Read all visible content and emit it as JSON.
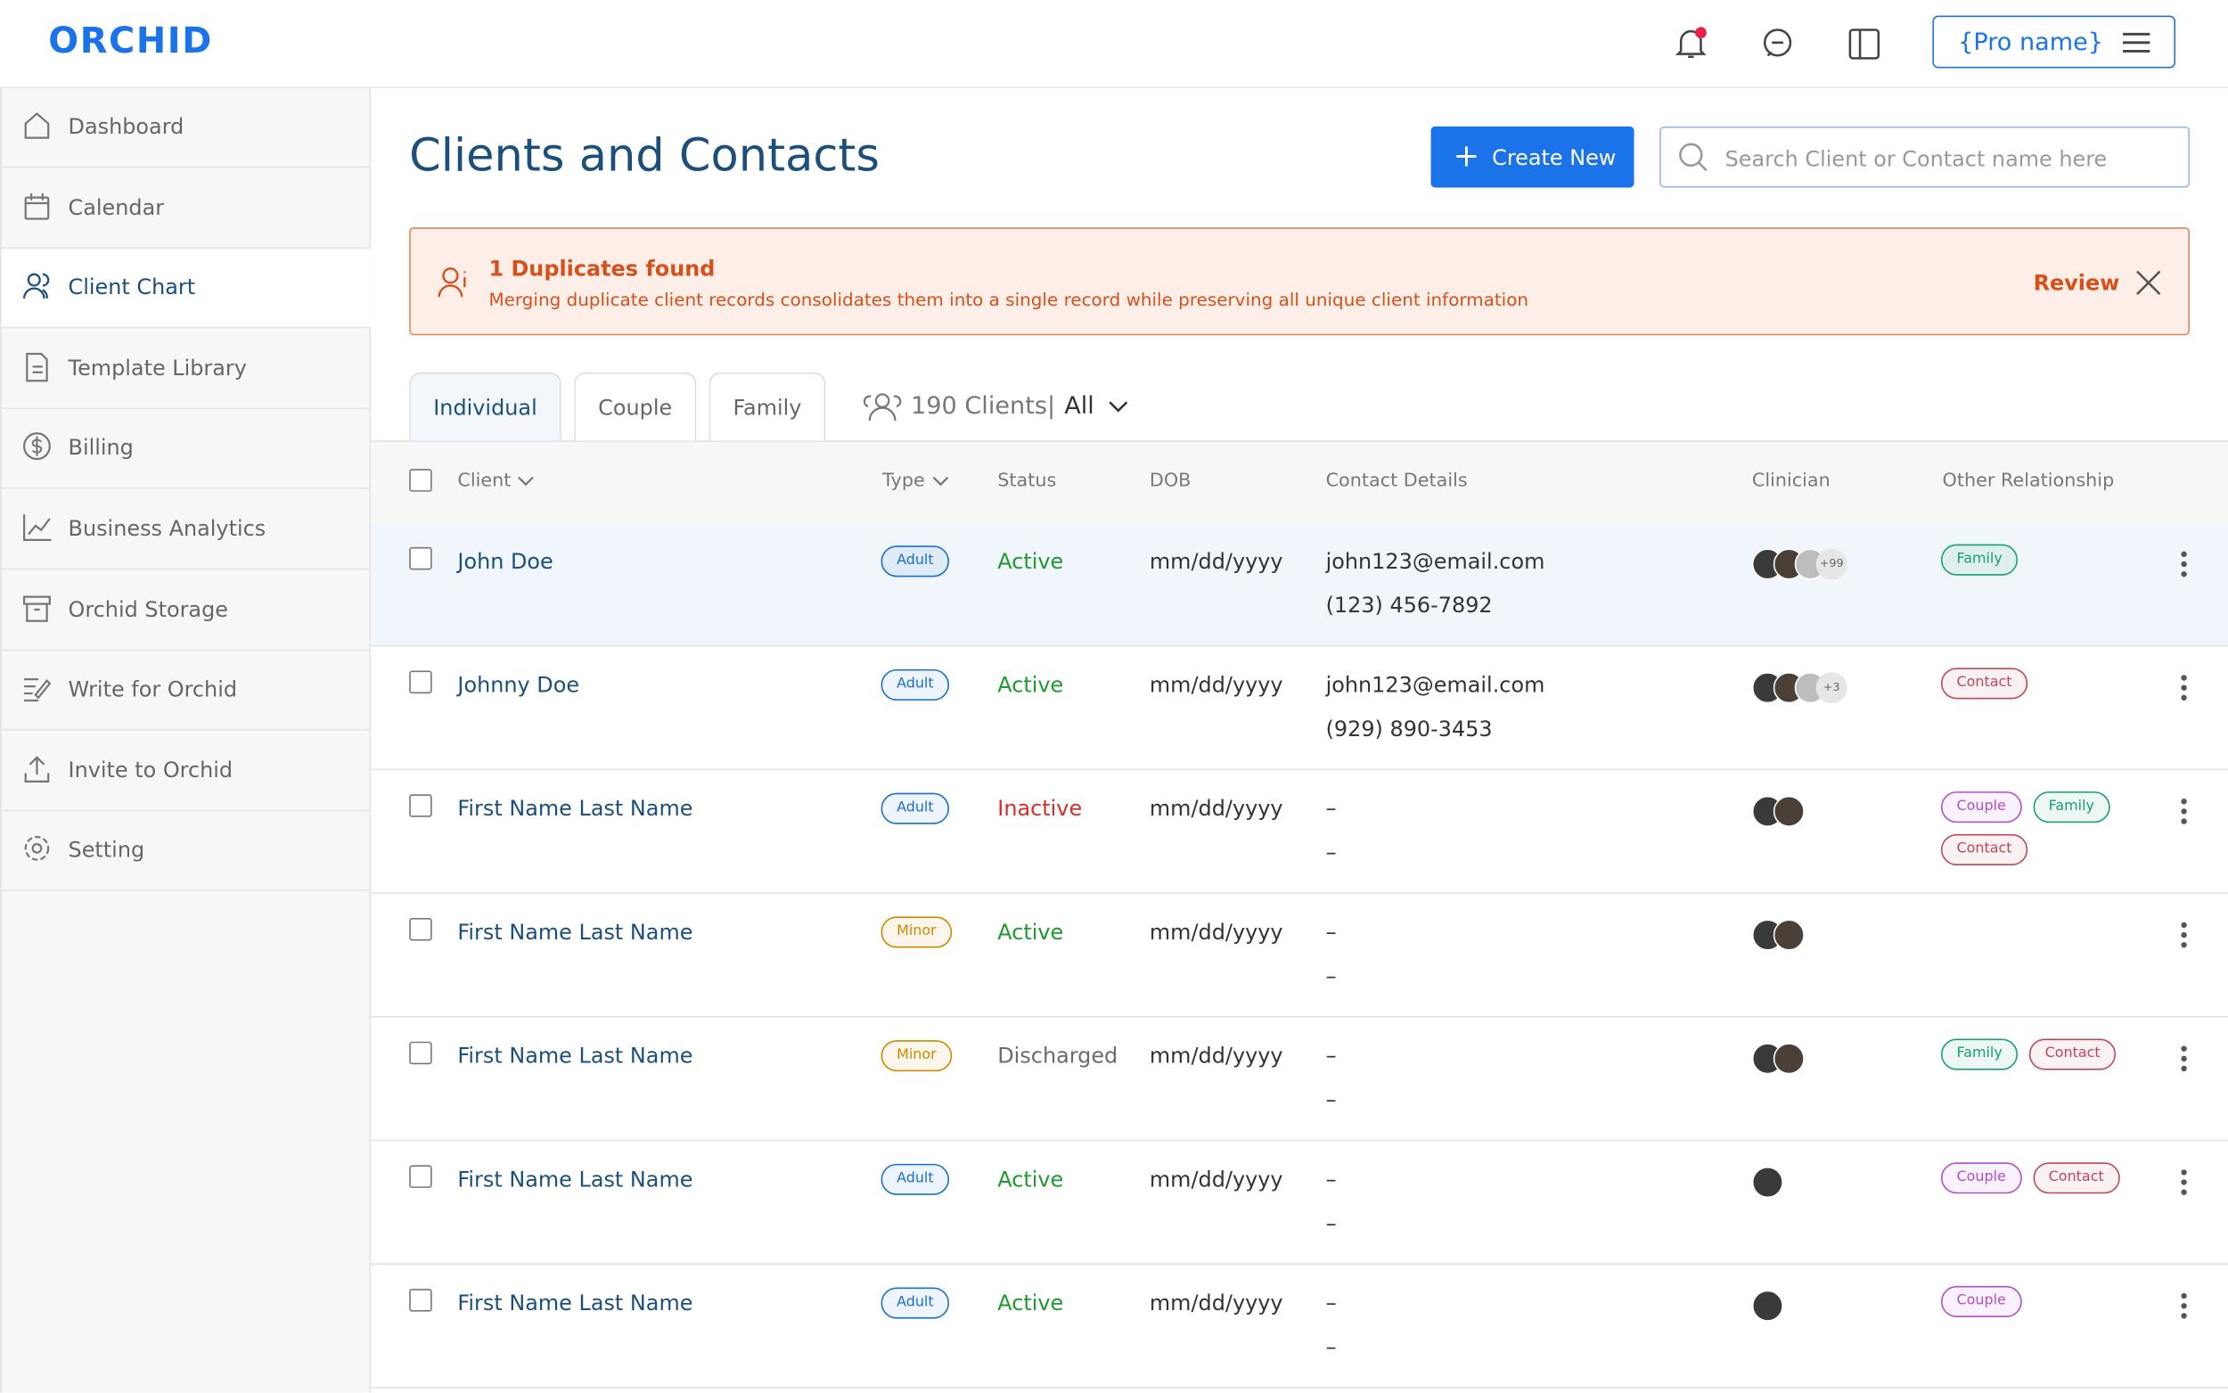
{
  "header": {
    "logo": "ORCHID",
    "pro_name": "{Pro name}"
  },
  "sidebar": {
    "items": [
      "Dashboard",
      "Calendar",
      "Client Chart",
      "Template Library",
      "Billing",
      "Business Analytics",
      "Orchid Storage",
      "Write for Orchid",
      "Invite to Orchid",
      "Setting"
    ],
    "active": 2
  },
  "page": {
    "title": "Clients and Contacts",
    "create_button": "Create New",
    "search_placeholder": "Search Client or Contact name here"
  },
  "alert": {
    "title": "1 Duplicates found",
    "message": "Merging duplicate client records consolidates them into a single record while preserving all unique client information",
    "action": "Review"
  },
  "tabs": {
    "items": [
      "Individual",
      "Couple",
      "Family"
    ],
    "active": 0,
    "count": "190 Clients|",
    "filter": "All"
  },
  "table": {
    "headers": [
      "Client",
      "Type",
      "Status",
      "DOB",
      "Contact Details",
      "Clinician",
      "Other Relationship"
    ],
    "rows": [
      {
        "name": "John Doe",
        "type": "Adult",
        "type_color": "#1a6fd1",
        "status": "Active",
        "status_color": "#1e9a2e",
        "dob": "mm/dd/yyyy",
        "email": "john123@email.com",
        "phone": "(123) 456-7892",
        "clinician_more": "+99",
        "relationships": [
          {
            "label": "Family",
            "color": "#16a073"
          }
        ]
      },
      {
        "name": "Johnny Doe",
        "type": "Adult",
        "type_color": "#1a6fd1",
        "status": "Active",
        "status_color": "#1e9a2e",
        "dob": "mm/dd/yyyy",
        "email": "john123@email.com",
        "phone": "(929) 890-3453",
        "clinician_more": "+3",
        "relationships": [
          {
            "label": "Contact",
            "color": "#c0475a"
          }
        ]
      },
      {
        "name": "First Name Last Name",
        "type": "Adult",
        "type_color": "#1a6fd1",
        "status": "Inactive",
        "status_color": "#d92c2c",
        "dob": "mm/dd/yyyy",
        "email": "–",
        "phone": "–",
        "clinician_more": null,
        "relationships": [
          {
            "label": "Couple",
            "color": "#b04fcf"
          },
          {
            "label": "Family",
            "color": "#16a073"
          },
          {
            "label": "Contact",
            "color": "#c0475a"
          }
        ]
      },
      {
        "name": "First Name Last Name",
        "type": "Minor",
        "type_color": "#c98a00",
        "status": "Active",
        "status_color": "#1e9a2e",
        "dob": "mm/dd/yyyy",
        "email": "–",
        "phone": "–",
        "clinician_more": null,
        "relationships": []
      },
      {
        "name": "First Name Last Name",
        "type": "Minor",
        "type_color": "#c98a00",
        "status": "Discharged",
        "status_color": "#6b6b6b",
        "dob": "mm/dd/yyyy",
        "email": "–",
        "phone": "–",
        "clinician_more": null,
        "relationships": [
          {
            "label": "Family",
            "color": "#16a073"
          },
          {
            "label": "Contact",
            "color": "#c0475a"
          }
        ]
      },
      {
        "name": "First Name Last Name",
        "type": "Adult",
        "type_color": "#1a6fd1",
        "status": "Active",
        "status_color": "#1e9a2e",
        "dob": "mm/dd/yyyy",
        "email": "–",
        "phone": "–",
        "clinician_more": null,
        "relationships": [
          {
            "label": "Couple",
            "color": "#b04fcf"
          },
          {
            "label": "Contact",
            "color": "#c0475a"
          }
        ]
      },
      {
        "name": "First Name Last Name",
        "type": "Adult",
        "type_color": "#1a6fd1",
        "status": "Active",
        "status_color": "#1e9a2e",
        "dob": "mm/dd/yyyy",
        "email": "–",
        "phone": "–",
        "clinician_more": null,
        "relationships": [
          {
            "label": "Couple",
            "color": "#b04fcf"
          }
        ]
      }
    ]
  }
}
